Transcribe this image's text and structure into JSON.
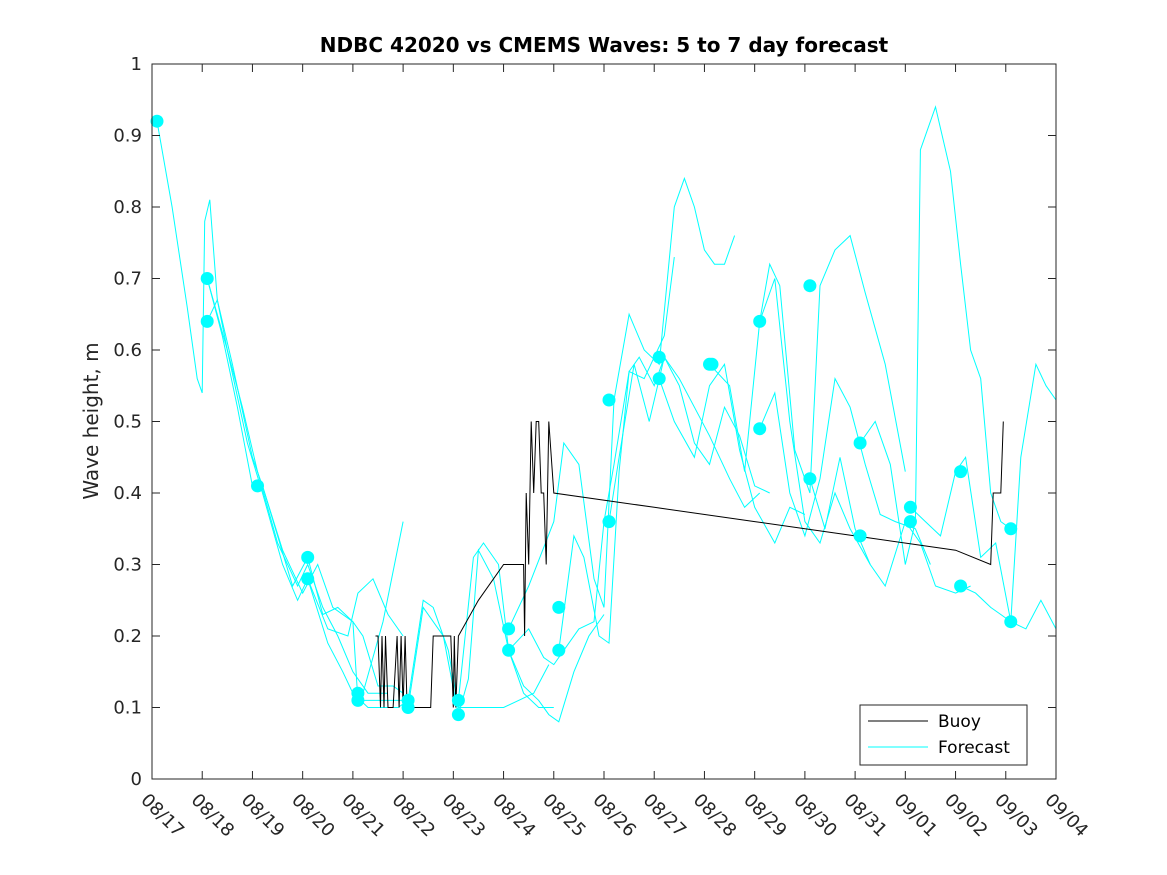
{
  "chart_data": {
    "type": "line",
    "title": "NDBC 42020 vs CMEMS Waves: 5 to 7 day forecast",
    "xlabel": "",
    "ylabel": "Wave height, m",
    "xlim": [
      0,
      18
    ],
    "ylim": [
      0,
      1
    ],
    "x_ticks": [
      0,
      1,
      2,
      3,
      4,
      5,
      6,
      7,
      8,
      9,
      10,
      11,
      12,
      13,
      14,
      15,
      16,
      17,
      18
    ],
    "x_tick_labels": [
      "08/17",
      "08/18",
      "08/19",
      "08/20",
      "08/21",
      "08/22",
      "08/23",
      "08/24",
      "08/25",
      "08/26",
      "08/27",
      "08/28",
      "08/29",
      "08/30",
      "08/31",
      "09/01",
      "09/02",
      "09/03",
      "09/04"
    ],
    "y_ticks": [
      0,
      0.1,
      0.2,
      0.3,
      0.4,
      0.5,
      0.6,
      0.7,
      0.8,
      0.9,
      1
    ],
    "y_tick_labels": [
      "0",
      "0.1",
      "0.2",
      "0.3",
      "0.4",
      "0.5",
      "0.6",
      "0.7",
      "0.8",
      "0.9",
      "1"
    ],
    "legend": {
      "position": "bottom-right",
      "entries": [
        {
          "name": "Buoy",
          "color": "#000000"
        },
        {
          "name": "Forecast",
          "color": "#00ffff"
        }
      ]
    },
    "colors": {
      "buoy": "#000000",
      "forecast": "#00ffff",
      "axis": "#262626"
    },
    "buoy": {
      "name": "Buoy",
      "x": [
        4.45,
        4.5,
        4.55,
        4.58,
        4.62,
        4.65,
        4.7,
        4.75,
        4.8,
        4.88,
        4.92,
        4.96,
        5.0,
        5.04,
        5.08,
        5.1,
        5.3,
        5.55,
        5.6,
        5.95,
        6.0,
        6.02,
        6.05,
        6.1,
        6.5,
        7.0,
        7.4,
        7.42,
        7.45,
        7.5,
        7.55,
        7.6,
        7.65,
        7.7,
        7.75,
        7.8,
        7.85,
        7.9,
        8.0,
        10.0,
        12.0,
        14.0,
        16.0,
        16.7,
        16.75,
        16.9,
        16.95
      ],
      "y": [
        0.2,
        0.2,
        0.1,
        0.2,
        0.1,
        0.2,
        0.1,
        0.1,
        0.1,
        0.2,
        0.1,
        0.2,
        0.1,
        0.2,
        0.1,
        0.1,
        0.1,
        0.1,
        0.2,
        0.2,
        0.1,
        0.2,
        0.1,
        0.2,
        0.25,
        0.3,
        0.3,
        0.2,
        0.4,
        0.3,
        0.5,
        0.4,
        0.5,
        0.5,
        0.4,
        0.4,
        0.3,
        0.5,
        0.4,
        0.38,
        0.36,
        0.34,
        0.32,
        0.3,
        0.4,
        0.4,
        0.5
      ]
    },
    "forecast_series": [
      {
        "name": "Forecast",
        "x": [
          0.1,
          0.4,
          0.7,
          0.9,
          1.0,
          1.05,
          1.15,
          1.3,
          1.5,
          1.8,
          2.1,
          2.5,
          2.9,
          3.1,
          3.4,
          3.7,
          4.0,
          4.3,
          4.7
        ],
        "y": [
          0.92,
          0.8,
          0.66,
          0.56,
          0.54,
          0.78,
          0.81,
          0.67,
          0.6,
          0.52,
          0.43,
          0.33,
          0.27,
          0.3,
          0.24,
          0.2,
          0.15,
          0.12,
          0.12
        ]
      },
      {
        "name": "Forecast",
        "x": [
          1.1,
          1.3,
          1.6,
          2.0,
          2.2,
          2.6,
          3.0,
          3.3,
          3.6,
          4.0,
          4.2,
          4.5,
          4.8,
          5.0
        ],
        "y": [
          0.64,
          0.67,
          0.58,
          0.45,
          0.41,
          0.32,
          0.26,
          0.3,
          0.24,
          0.22,
          0.2,
          0.13,
          0.13,
          0.12
        ]
      },
      {
        "name": "Forecast",
        "x": [
          1.1,
          1.4,
          1.7,
          2.0,
          2.2,
          2.5,
          2.8,
          3.1,
          3.4,
          3.7,
          4.0,
          4.1,
          4.4,
          4.7,
          5.0
        ],
        "y": [
          0.7,
          0.62,
          0.52,
          0.41,
          0.41,
          0.34,
          0.27,
          0.31,
          0.23,
          0.24,
          0.22,
          0.11,
          0.11,
          0.11,
          0.11
        ]
      },
      {
        "name": "Forecast",
        "x": [
          1.1,
          1.5,
          1.9,
          2.2,
          2.6,
          2.9,
          3.1,
          3.5,
          3.9,
          4.1,
          4.4,
          4.7,
          5.0
        ],
        "y": [
          0.7,
          0.6,
          0.47,
          0.4,
          0.3,
          0.25,
          0.28,
          0.21,
          0.2,
          0.26,
          0.28,
          0.23,
          0.2
        ]
      },
      {
        "name": "Forecast",
        "x": [
          3.1,
          3.5,
          3.8,
          4.0,
          4.2,
          4.6,
          5.0
        ],
        "y": [
          0.28,
          0.19,
          0.15,
          0.12,
          0.12,
          0.22,
          0.36
        ]
      },
      {
        "name": "Forecast",
        "x": [
          4.0,
          4.3,
          4.6,
          4.9,
          5.1,
          5.4,
          5.6,
          5.9,
          6.1,
          6.3,
          6.6,
          7.0,
          7.3,
          7.6,
          7.9
        ],
        "y": [
          0.12,
          0.1,
          0.1,
          0.1,
          0.11,
          0.25,
          0.24,
          0.18,
          0.1,
          0.1,
          0.1,
          0.1,
          0.11,
          0.12,
          0.16
        ]
      },
      {
        "name": "Forecast",
        "x": [
          5.1,
          5.4,
          5.8,
          6.1,
          6.3,
          6.5,
          6.8,
          7.1,
          7.4,
          7.7,
          8.0
        ],
        "y": [
          0.1,
          0.24,
          0.2,
          0.09,
          0.14,
          0.32,
          0.28,
          0.18,
          0.12,
          0.1,
          0.1
        ]
      },
      {
        "name": "Forecast",
        "x": [
          6.1,
          6.4,
          6.6,
          6.9,
          7.1,
          7.4,
          7.7,
          7.9,
          8.1,
          8.4,
          8.7,
          9.0
        ],
        "y": [
          0.11,
          0.31,
          0.33,
          0.3,
          0.18,
          0.13,
          0.11,
          0.09,
          0.08,
          0.15,
          0.2,
          0.23
        ]
      },
      {
        "name": "Forecast",
        "x": [
          7.1,
          7.5,
          7.8,
          8.0,
          8.2,
          8.5,
          8.8,
          9.0,
          9.2,
          9.5,
          9.8,
          10.0,
          10.2,
          10.4
        ],
        "y": [
          0.18,
          0.21,
          0.17,
          0.16,
          0.18,
          0.21,
          0.22,
          0.36,
          0.44,
          0.57,
          0.56,
          0.59,
          0.62,
          0.73
        ]
      },
      {
        "name": "Forecast",
        "x": [
          7.1,
          7.5,
          8.0,
          8.2,
          8.5,
          8.8,
          9.0,
          9.2,
          9.5,
          9.8,
          10.1,
          10.4,
          10.6,
          10.8,
          11.0,
          11.2,
          11.4,
          11.6
        ],
        "y": [
          0.21,
          0.27,
          0.36,
          0.47,
          0.44,
          0.28,
          0.24,
          0.53,
          0.65,
          0.6,
          0.58,
          0.8,
          0.84,
          0.8,
          0.74,
          0.72,
          0.72,
          0.76
        ]
      },
      {
        "name": "Forecast",
        "x": [
          8.1,
          8.4,
          8.6,
          8.9,
          9.1,
          9.3,
          9.5,
          9.7,
          10.0,
          10.2,
          10.5,
          10.8,
          11.1,
          11.5,
          11.8,
          12.1
        ],
        "y": [
          0.18,
          0.34,
          0.31,
          0.2,
          0.19,
          0.43,
          0.57,
          0.59,
          0.55,
          0.59,
          0.56,
          0.52,
          0.48,
          0.42,
          0.38,
          0.4
        ]
      },
      {
        "name": "Forecast",
        "x": [
          9.1,
          9.3,
          9.6,
          9.9,
          10.2,
          10.5,
          10.8,
          11.1,
          11.4,
          11.7,
          12.0,
          12.3
        ],
        "y": [
          0.36,
          0.45,
          0.58,
          0.5,
          0.59,
          0.55,
          0.47,
          0.44,
          0.52,
          0.48,
          0.41,
          0.4
        ]
      },
      {
        "name": "Forecast",
        "x": [
          10.1,
          10.4,
          10.8,
          11.1,
          11.4,
          11.7,
          12.0,
          12.4,
          12.7,
          13.0
        ],
        "y": [
          0.56,
          0.5,
          0.45,
          0.55,
          0.58,
          0.46,
          0.38,
          0.33,
          0.38,
          0.37
        ]
      },
      {
        "name": "Forecast",
        "x": [
          11.1,
          11.5,
          11.8,
          12.1,
          12.4,
          12.7,
          13.0,
          13.3,
          13.6,
          13.9,
          14.3
        ],
        "y": [
          0.58,
          0.55,
          0.43,
          0.64,
          0.7,
          0.5,
          0.36,
          0.33,
          0.4,
          0.35,
          0.3
        ]
      },
      {
        "name": "Forecast",
        "x": [
          12.1,
          12.3,
          12.5,
          12.8,
          13.1,
          13.3,
          13.6,
          13.9,
          14.2,
          14.6,
          15.0
        ],
        "y": [
          0.64,
          0.72,
          0.69,
          0.46,
          0.4,
          0.69,
          0.74,
          0.76,
          0.68,
          0.58,
          0.43
        ]
      },
      {
        "name": "Forecast",
        "x": [
          12.1,
          12.4,
          12.7,
          13.0,
          13.3,
          13.6,
          13.9,
          14.2,
          14.5,
          14.8,
          15.2,
          15.5
        ],
        "y": [
          0.49,
          0.54,
          0.4,
          0.34,
          0.42,
          0.56,
          0.52,
          0.44,
          0.37,
          0.36,
          0.35,
          0.3
        ]
      },
      {
        "name": "Forecast",
        "x": [
          13.1,
          13.4,
          13.7,
          14.0,
          14.3,
          14.6,
          15.0,
          15.3,
          15.6,
          16.0,
          16.3
        ],
        "y": [
          0.42,
          0.35,
          0.45,
          0.35,
          0.3,
          0.27,
          0.36,
          0.33,
          0.27,
          0.26,
          0.27
        ]
      },
      {
        "name": "Forecast",
        "x": [
          14.1,
          14.4,
          14.7,
          15.0,
          15.2,
          15.3,
          15.6,
          15.9,
          16.1,
          16.3,
          16.5,
          16.7,
          16.9,
          17.1
        ],
        "y": [
          0.47,
          0.5,
          0.44,
          0.3,
          0.36,
          0.88,
          0.94,
          0.85,
          0.72,
          0.6,
          0.56,
          0.4,
          0.36,
          0.35
        ]
      },
      {
        "name": "Forecast",
        "x": [
          15.1,
          15.4,
          15.7,
          16.0,
          16.2,
          16.5,
          16.8,
          17.1,
          17.4,
          17.7,
          18.0
        ],
        "y": [
          0.38,
          0.36,
          0.34,
          0.43,
          0.45,
          0.31,
          0.33,
          0.22,
          0.21,
          0.25,
          0.21
        ]
      },
      {
        "name": "Forecast",
        "x": [
          16.1,
          16.4,
          16.7,
          16.9,
          17.1,
          17.3,
          17.6,
          17.8,
          18.0
        ],
        "y": [
          0.27,
          0.26,
          0.24,
          0.23,
          0.22,
          0.45,
          0.58,
          0.55,
          0.53
        ]
      }
    ],
    "forecast_start_markers": {
      "x": [
        0.1,
        1.1,
        1.1,
        2.1,
        3.1,
        3.1,
        4.1,
        4.1,
        5.1,
        5.1,
        6.1,
        6.1,
        7.1,
        7.1,
        8.1,
        8.1,
        9.1,
        9.1,
        10.1,
        10.1,
        11.1,
        11.15,
        12.1,
        12.1,
        13.1,
        13.1,
        14.1,
        14.1,
        15.1,
        15.1,
        16.1,
        16.1,
        17.1,
        17.1
      ],
      "y": [
        0.92,
        0.7,
        0.64,
        0.41,
        0.31,
        0.28,
        0.12,
        0.11,
        0.11,
        0.1,
        0.11,
        0.09,
        0.21,
        0.18,
        0.24,
        0.18,
        0.53,
        0.36,
        0.59,
        0.56,
        0.58,
        0.58,
        0.64,
        0.49,
        0.69,
        0.42,
        0.47,
        0.34,
        0.38,
        0.36,
        0.43,
        0.27,
        0.35,
        0.22
      ]
    }
  }
}
